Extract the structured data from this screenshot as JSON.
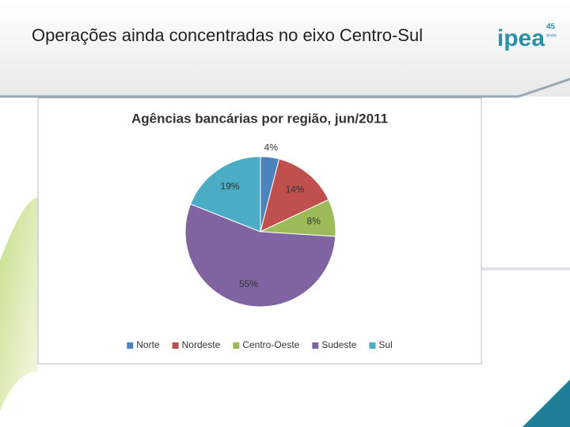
{
  "slide": {
    "title": "Operações ainda concentradas no eixo Centro-Sul",
    "logo": {
      "name": "ipea",
      "years": "45",
      "sub": "anos"
    }
  },
  "chart_data": {
    "type": "pie",
    "title": "Agências bancárias por região, jun/2011",
    "categories": [
      "Norte",
      "Nordeste",
      "Centro-Oeste",
      "Sudeste",
      "Sul"
    ],
    "values": [
      4,
      14,
      8,
      55,
      19
    ],
    "value_labels": [
      "4%",
      "14%",
      "8%",
      "55%",
      "19%"
    ],
    "colors": [
      "#4f81bd",
      "#c0504d",
      "#9bbb59",
      "#8064a2",
      "#4bacc6"
    ],
    "legend": "bottom"
  }
}
